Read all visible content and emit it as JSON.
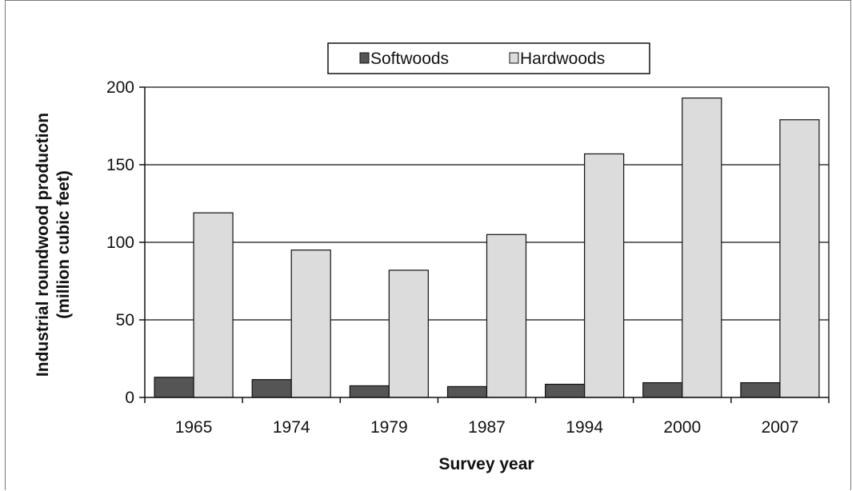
{
  "chart_data": {
    "type": "bar",
    "categories": [
      "1965",
      "1974",
      "1979",
      "1987",
      "1994",
      "2000",
      "2007"
    ],
    "series": [
      {
        "name": "Softwoods",
        "values": [
          13,
          11.5,
          7.5,
          7,
          8.5,
          9.5,
          9.5
        ],
        "color": "#555555"
      },
      {
        "name": "Hardwoods",
        "values": [
          119,
          95,
          82,
          105,
          157,
          193,
          179
        ],
        "color": "#dcdcdc"
      }
    ],
    "xlabel": "Survey year",
    "ylabel": [
      "Industrial roundwood production",
      "(million cubic feet)"
    ],
    "ylim": [
      0,
      200
    ],
    "yticks": [
      0,
      50,
      100,
      150,
      200
    ],
    "grid": true,
    "legend": "top-center"
  }
}
